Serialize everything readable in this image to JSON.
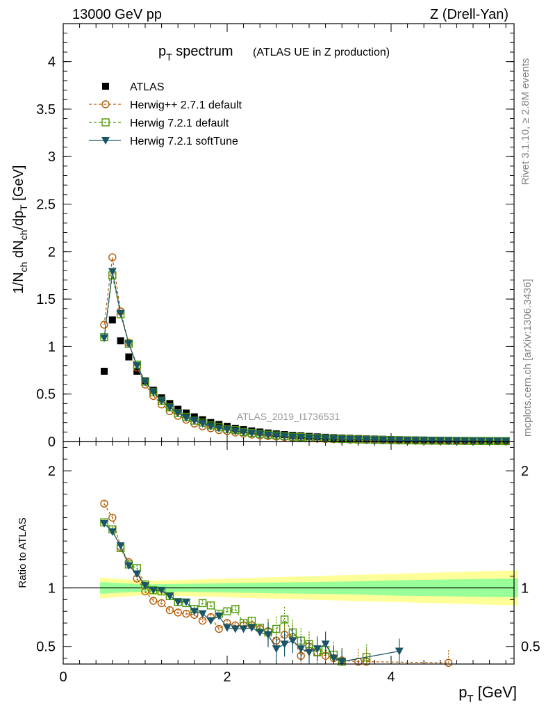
{
  "header": {
    "left": "13000 GeV pp",
    "right": "Z (Drell-Yan)"
  },
  "side_text": {
    "rivet": "Rivet 3.1.10, ≥ 2.8M events",
    "mcplots": "mcplots.cern.ch [arXiv:1306.3436]"
  },
  "colors": {
    "atlas": "#000000",
    "herwigpp": "#b35900",
    "herwig721": "#4c9900",
    "softtune": "#1a5566",
    "band_inner": "#99ff99",
    "band_outer": "#ffff99"
  },
  "chart_data": [
    {
      "type": "scatter",
      "title_main": "p",
      "title_sub": "T",
      "title_rest": " spectrum",
      "title_extra": "(ATLAS UE in Z production)",
      "ylabel": "1/N_ch dN_ch/dp_T [GeV]",
      "ylabel_parts": {
        "a": "1/N",
        "b": "ch",
        "c": " dN",
        "d": "ch",
        "e": "/dp",
        "f": "T",
        "g": " [GeV]"
      },
      "watermark": "ATLAS_2019_I1736531",
      "xlim": [
        0,
        5.5
      ],
      "ylim": [
        0,
        4.4
      ],
      "yticks": [
        0,
        0.5,
        1,
        1.5,
        2,
        2.5,
        3,
        3.5,
        4
      ],
      "ytick_labels": [
        "0",
        "0.5",
        "1",
        "1.5",
        "2",
        "2.5",
        "3",
        "3.5",
        "4"
      ],
      "legend": [
        {
          "key": "atlas",
          "label": "ATLAS",
          "marker": "square"
        },
        {
          "key": "herwigpp",
          "label": "Herwig++ 2.7.1 default",
          "marker": "circle-open"
        },
        {
          "key": "herwig721",
          "label": "Herwig 7.2.1 default",
          "marker": "square-open"
        },
        {
          "key": "softtune",
          "label": "Herwig 7.2.1 softTune",
          "marker": "triangle-down"
        }
      ],
      "x": [
        0.5,
        0.6,
        0.7,
        0.8,
        0.9,
        1.0,
        1.1,
        1.2,
        1.3,
        1.4,
        1.5,
        1.6,
        1.7,
        1.8,
        1.9,
        2.0,
        2.1,
        2.2,
        2.3,
        2.4,
        2.5,
        2.6,
        2.7,
        2.8,
        2.9,
        3.0,
        3.1,
        3.2,
        3.3,
        3.4,
        3.5,
        3.6,
        3.7,
        3.8,
        3.9,
        4.0,
        4.1,
        4.2,
        4.3,
        4.4,
        4.5,
        4.6,
        4.7,
        4.8,
        4.9,
        5.0,
        5.1,
        5.2,
        5.3,
        5.4
      ],
      "series": [
        {
          "name": "ATLAS",
          "values": [
            0.74,
            1.28,
            1.06,
            0.89,
            0.74,
            0.64,
            0.54,
            0.46,
            0.4,
            0.34,
            0.3,
            0.26,
            0.23,
            0.2,
            0.18,
            0.16,
            0.14,
            0.125,
            0.112,
            0.1,
            0.09,
            0.081,
            0.073,
            0.066,
            0.06,
            0.054,
            0.049,
            0.045,
            0.041,
            0.037,
            0.034,
            0.031,
            0.028,
            0.026,
            0.024,
            0.022,
            0.02,
            0.018,
            0.017,
            0.016,
            0.014,
            0.013,
            0.012,
            0.011,
            0.01,
            0.0095,
            0.0088,
            0.0081,
            0.0075,
            0.007
          ]
        },
        {
          "name": "Herwig++ 2.7.1 default",
          "values": [
            1.23,
            1.94,
            1.37,
            1.04,
            0.78,
            0.6,
            0.48,
            0.39,
            0.32,
            0.27,
            0.23,
            0.19,
            0.16,
            0.14,
            0.12,
            0.11,
            0.095,
            0.083,
            0.073,
            0.065,
            0.058,
            0.052,
            0.046,
            0.041,
            0.037,
            0.033,
            0.03,
            0.027,
            0.024,
            0.022,
            0.02,
            0.018,
            0.016,
            0.015,
            0.013,
            0.012,
            0.011,
            0.01,
            0.009,
            0.0085,
            0.0078,
            0.0072,
            0.0066,
            0.0061,
            0.0056,
            0.0052,
            0.0048,
            0.0044,
            0.0041,
            0.0038
          ]
        },
        {
          "name": "Herwig 7.2.1 default",
          "values": [
            1.1,
            1.75,
            1.34,
            1.03,
            0.81,
            0.63,
            0.52,
            0.43,
            0.36,
            0.3,
            0.26,
            0.22,
            0.2,
            0.17,
            0.15,
            0.13,
            0.12,
            0.1,
            0.09,
            0.08,
            0.072,
            0.064,
            0.057,
            0.051,
            0.046,
            0.041,
            0.037,
            0.033,
            0.03,
            0.027,
            0.024,
            0.022,
            0.02,
            0.018,
            0.016,
            0.015,
            0.013,
            0.012,
            0.011,
            0.01,
            0.0092,
            0.0085,
            0.0078,
            0.0071,
            0.0065,
            0.006,
            0.0055,
            0.0051,
            0.0047,
            0.0043
          ]
        },
        {
          "name": "Herwig 7.2.1 softTune",
          "values": [
            1.09,
            1.79,
            1.35,
            1.03,
            0.8,
            0.63,
            0.52,
            0.43,
            0.36,
            0.3,
            0.25,
            0.22,
            0.19,
            0.16,
            0.14,
            0.125,
            0.11,
            0.097,
            0.086,
            0.076,
            0.068,
            0.06,
            0.054,
            0.048,
            0.043,
            0.038,
            0.034,
            0.031,
            0.028,
            0.025,
            0.023,
            0.021,
            0.019,
            0.017,
            0.015,
            0.014,
            0.013,
            0.012,
            0.011,
            0.0098,
            0.009,
            0.0083,
            0.0076,
            0.007,
            0.0064,
            0.0059,
            0.0054,
            0.005,
            0.0046,
            0.0042
          ]
        }
      ]
    },
    {
      "type": "scatter",
      "ylabel": "Ratio to ATLAS",
      "xlabel": "p_T [GeV]",
      "xlabel_parts": {
        "a": "p",
        "b": "T",
        "c": " [GeV]"
      },
      "xlim": [
        0,
        5.5
      ],
      "ylim": [
        0.35,
        2.25
      ],
      "xticks": [
        0,
        2,
        4
      ],
      "xtick_labels": [
        "0",
        "2",
        "4"
      ],
      "yticks": [
        0.5,
        1,
        2
      ],
      "ytick_labels": [
        "0.5",
        "1",
        "2"
      ],
      "reference_line": 1,
      "band_x": [
        0.45,
        1.0,
        1.5,
        2.0,
        2.5,
        3.0,
        3.5,
        4.0,
        4.5,
        5.0,
        5.55
      ],
      "band_inner_halfwidth": [
        0.05,
        0.03,
        0.035,
        0.04,
        0.045,
        0.05,
        0.055,
        0.065,
        0.07,
        0.075,
        0.08
      ],
      "band_outer_halfwidth": [
        0.09,
        0.06,
        0.07,
        0.08,
        0.09,
        0.1,
        0.11,
        0.12,
        0.13,
        0.14,
        0.15
      ],
      "series": [
        {
          "name": "Herwig++ 2.7.1 default",
          "x": [
            0.5,
            0.6,
            0.7,
            0.8,
            0.9,
            1.0,
            1.1,
            1.2,
            1.3,
            1.4,
            1.5,
            1.6,
            1.7,
            1.8,
            1.9,
            2.0,
            2.1,
            2.2,
            2.3,
            2.4,
            2.5,
            2.6,
            2.7,
            2.8,
            2.9,
            3.0,
            3.1,
            3.2,
            3.3,
            3.4,
            3.6,
            3.7,
            4.7
          ],
          "values": [
            1.72,
            1.6,
            1.35,
            1.22,
            1.08,
            0.97,
            0.89,
            0.87,
            0.81,
            0.79,
            0.78,
            0.77,
            0.72,
            0.75,
            0.65,
            0.7,
            0.68,
            0.68,
            0.68,
            0.65,
            0.63,
            0.55,
            0.6,
            0.58,
            0.42,
            0.5,
            0.45,
            0.42,
            0.4,
            0.38,
            0.37,
            0.37,
            0.36
          ]
        },
        {
          "name": "Herwig 7.2.1 default",
          "x": [
            0.5,
            0.6,
            0.7,
            0.8,
            0.9,
            1.0,
            1.1,
            1.2,
            1.3,
            1.4,
            1.5,
            1.6,
            1.7,
            1.8,
            1.9,
            2.0,
            2.1,
            2.2,
            2.3,
            2.4,
            2.5,
            2.6,
            2.7,
            2.8,
            2.9,
            3.0,
            3.1,
            3.2,
            3.3,
            3.4,
            3.7
          ],
          "values": [
            1.56,
            1.5,
            1.34,
            1.2,
            1.17,
            1.03,
            0.98,
            0.97,
            0.93,
            0.88,
            0.87,
            0.82,
            0.87,
            0.85,
            0.78,
            0.8,
            0.82,
            0.7,
            0.72,
            0.66,
            0.62,
            0.65,
            0.73,
            0.62,
            0.55,
            0.52,
            0.45,
            0.47,
            0.43,
            0.37,
            0.41
          ]
        },
        {
          "name": "Herwig 7.2.1 softTune",
          "x": [
            0.5,
            0.6,
            0.7,
            0.8,
            0.9,
            1.0,
            1.1,
            1.2,
            1.3,
            1.4,
            1.5,
            1.6,
            1.7,
            1.8,
            1.9,
            2.0,
            2.1,
            2.2,
            2.3,
            2.4,
            2.5,
            2.6,
            2.7,
            2.8,
            2.9,
            3.0,
            3.1,
            3.2,
            3.3,
            3.4,
            4.1
          ],
          "values": [
            1.55,
            1.48,
            1.36,
            1.19,
            1.12,
            1.02,
            0.98,
            0.98,
            0.93,
            0.88,
            0.88,
            0.8,
            0.78,
            0.72,
            0.76,
            0.66,
            0.65,
            0.65,
            0.66,
            0.62,
            0.6,
            0.48,
            0.52,
            0.55,
            0.48,
            0.45,
            0.48,
            0.52,
            0.4,
            0.37,
            0.46
          ]
        }
      ]
    }
  ]
}
